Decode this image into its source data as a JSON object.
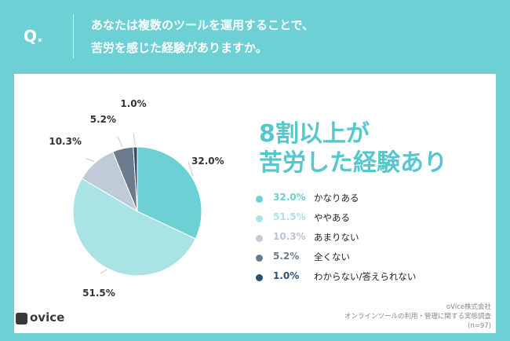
{
  "header": {
    "q_label": "Q.",
    "question_line1": "あなたは複数のツールを運用することで、",
    "question_line2": "苦労を感じた経験がありますか。"
  },
  "headline": {
    "line1": "8割以上が",
    "line2": "苦労した経験あり"
  },
  "source": {
    "company": "oVice株式会社",
    "survey": "オンラインツールの利用・管理に関する実態調査",
    "sample": "(n=97)"
  },
  "logo": {
    "text": "ovice",
    "icon": "ovice-logo-icon"
  },
  "colors": {
    "background": "#6dd0d4",
    "headline": "#55c7cd"
  },
  "chart_data": {
    "type": "pie",
    "start": "12 o'clock",
    "direction": "clockwise",
    "series": [
      {
        "label": "32.0%",
        "legend_pct": "32.0%",
        "name": "かなりある",
        "value": 32.0,
        "color": "#6dd0d4",
        "pct_color": "#6dd0d4"
      },
      {
        "label": "51.5%",
        "legend_pct": "51.5%",
        "name": "ややある",
        "value": 51.5,
        "color": "#a9e3e5",
        "pct_color": "#a9e3e5"
      },
      {
        "label": "10.3%",
        "legend_pct": "10.3%",
        "name": "あまりない",
        "value": 10.3,
        "color": "#c0cbd8",
        "pct_color": "#b9c4d1"
      },
      {
        "label": "5.2%",
        "legend_pct": "5.2%",
        "name": "全くない",
        "value": 5.2,
        "color": "#6b7b8c",
        "pct_color": "#6b7b8c"
      },
      {
        "label": "1.0%",
        "legend_pct": "1.0%",
        "name": "わからない/答えられない",
        "value": 1.0,
        "color": "#2c4f74",
        "pct_color": "#2c4f74"
      }
    ]
  }
}
